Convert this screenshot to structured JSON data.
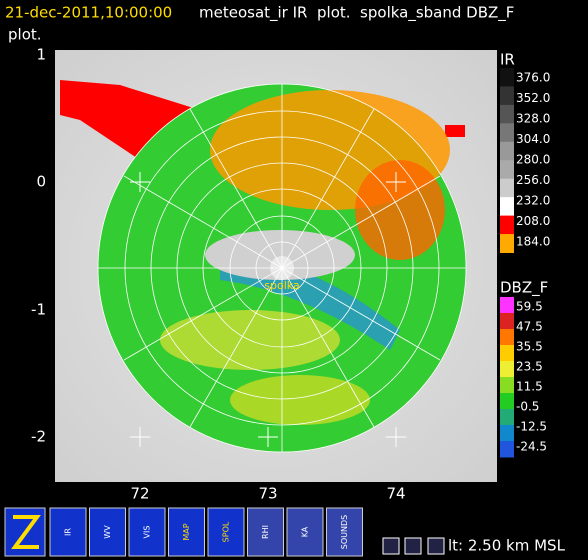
{
  "header": {
    "date": "21-dec-2011,10:00:00",
    "title_line1": "meteosat_ir IR  plot.  spolka_sband DBZ_F",
    "title_line2": "plot."
  },
  "map": {
    "y_labels": [
      "1",
      "0",
      "-1",
      "-2"
    ],
    "x_labels": [
      "72",
      "73",
      "74"
    ],
    "station": "spolka"
  },
  "colorbars": [
    {
      "name": "IR",
      "labels": [
        "376.0",
        "352.0",
        "328.0",
        "304.0",
        "280.0",
        "256.0",
        "232.0",
        "208.0",
        "184.0"
      ]
    },
    {
      "name": "DBZ_F",
      "labels": [
        "59.5",
        "47.5",
        "35.5",
        "23.5",
        "11.5",
        "-0.5",
        "-12.5",
        "-24.5"
      ]
    }
  ],
  "toolbar": {
    "buttons": [
      "IR",
      "WV",
      "VIS",
      "MAP",
      "SPOL",
      "RHI",
      "KA",
      "SOUNDS"
    ],
    "status": "lt: 2.50 km MSL"
  }
}
